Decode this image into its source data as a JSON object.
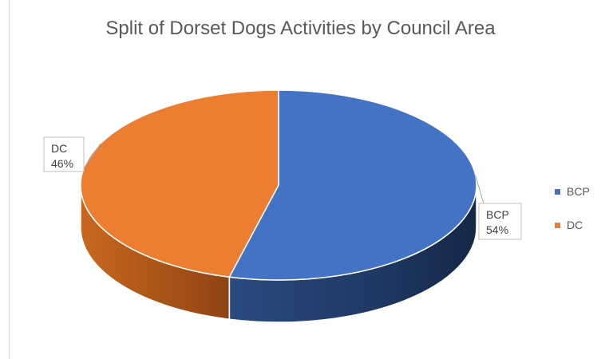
{
  "chart_data": {
    "type": "pie",
    "title": "Split of Dorset Dogs Activities by Council Area",
    "categories": [
      "BCP",
      "DC"
    ],
    "values": [
      54,
      46
    ],
    "value_labels": [
      "54%",
      "46%"
    ],
    "three_d": true,
    "legend_position": "right",
    "colors": [
      "#4472c4",
      "#ed7d31"
    ],
    "side_colors": [
      "#1f3864",
      "#a0501d"
    ]
  }
}
